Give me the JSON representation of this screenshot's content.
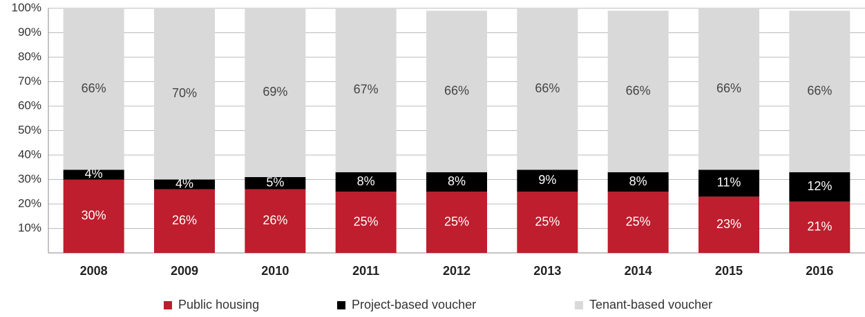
{
  "chart_data": {
    "type": "stacked_bar",
    "categories": [
      "2008",
      "2009",
      "2010",
      "2011",
      "2012",
      "2013",
      "2014",
      "2015",
      "2016"
    ],
    "series": [
      {
        "name": "Public housing",
        "color": "#be1e2d",
        "label_color": "#ffffff",
        "values": [
          30,
          26,
          26,
          25,
          25,
          25,
          25,
          23,
          21
        ],
        "value_labels": [
          "30%",
          "26%",
          "26%",
          "25%",
          "25%",
          "25%",
          "25%",
          "23%",
          "21%"
        ]
      },
      {
        "name": "Project-based voucher",
        "color": "#000000",
        "label_color": "#ffffff",
        "values": [
          4,
          4,
          5,
          8,
          8,
          9,
          8,
          11,
          12
        ],
        "value_labels": [
          "4%",
          "4%",
          "5%",
          "8%",
          "8%",
          "9%",
          "8%",
          "11%",
          "12%"
        ]
      },
      {
        "name": "Tenant-based voucher",
        "color": "#d9d9d9",
        "label_color": "#444444",
        "values": [
          66,
          70,
          69,
          67,
          66,
          66,
          66,
          66,
          66
        ],
        "value_labels": [
          "66%",
          "70%",
          "69%",
          "67%",
          "66%",
          "66%",
          "66%",
          "66%",
          "66%"
        ]
      }
    ],
    "ylim": [
      0,
      100
    ],
    "yticks": [
      {
        "value": 10,
        "label": "10%"
      },
      {
        "value": 20,
        "label": "20%"
      },
      {
        "value": 30,
        "label": "30%"
      },
      {
        "value": 40,
        "label": "40%"
      },
      {
        "value": 50,
        "label": "50%"
      },
      {
        "value": 60,
        "label": "60%"
      },
      {
        "value": 70,
        "label": "70%"
      },
      {
        "value": 80,
        "label": "80%"
      },
      {
        "value": 90,
        "label": "90%"
      },
      {
        "value": 100,
        "label": "100%"
      }
    ],
    "grid": true,
    "legend": "bottom"
  }
}
